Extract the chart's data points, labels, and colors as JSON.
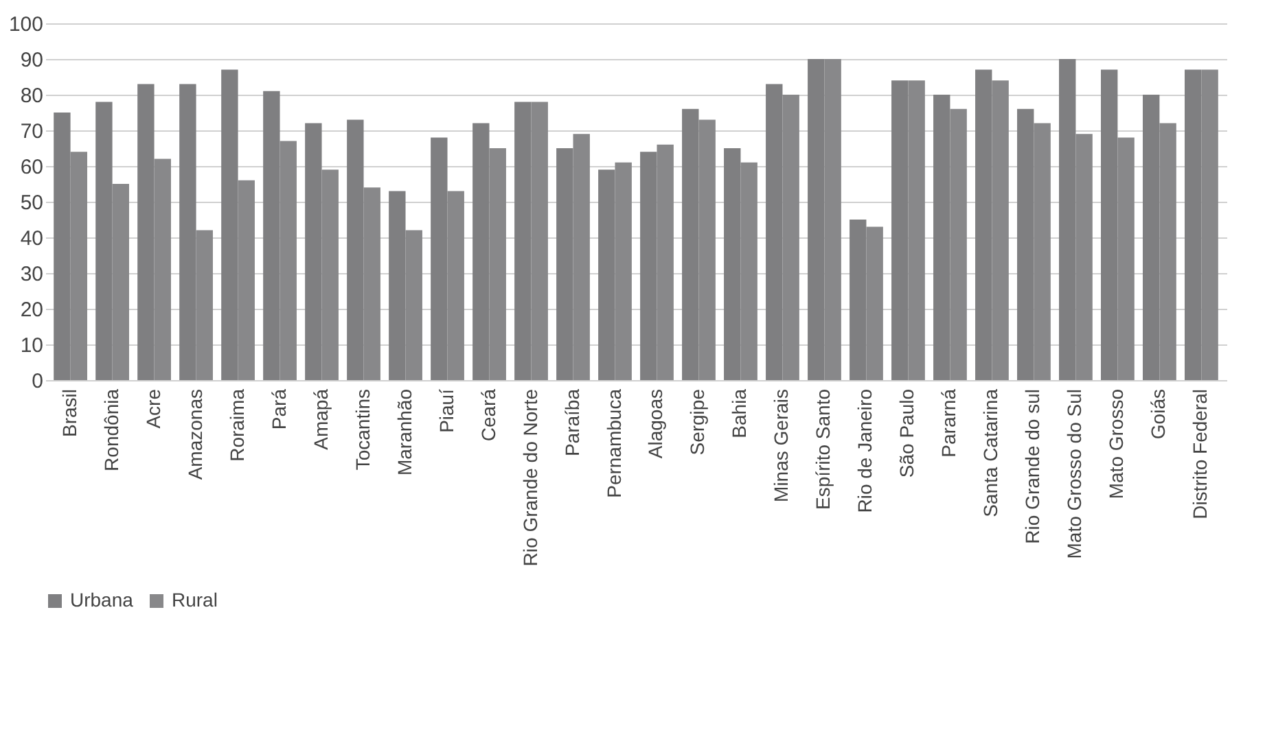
{
  "chart_data": {
    "type": "bar",
    "categories": [
      "Brasil",
      "Rondônia",
      "Acre",
      "Amazonas",
      "Roraima",
      "Pará",
      "Amapá",
      "Tocantins",
      "Maranhão",
      "Piauí",
      "Ceará",
      "Rio Grande do Norte",
      "Paraíba",
      "Pernambuca",
      "Alagoas",
      "Sergipe",
      "Bahia",
      "Minas Gerais",
      "Espírito Santo",
      "Rio de Janeiro",
      "São Paulo",
      "Pararná",
      "Santa Catarina",
      "Rio Grande do sul",
      "Mato Grosso do Sul",
      "Mato Grosso",
      "Goiás",
      "Distrito Federal"
    ],
    "series": [
      {
        "name": "Urbana",
        "color": "#7f7f81",
        "values": [
          75,
          78,
          83,
          83,
          87,
          81,
          72,
          73,
          53,
          68,
          72,
          78,
          65,
          59,
          64,
          76,
          65,
          83,
          90,
          45,
          84,
          80,
          87,
          76,
          90,
          87,
          80,
          87
        ]
      },
      {
        "name": "Rural",
        "color": "#88888a",
        "values": [
          64,
          55,
          62,
          42,
          56,
          67,
          59,
          54,
          42,
          53,
          65,
          78,
          69,
          61,
          66,
          73,
          61,
          80,
          90,
          43,
          84,
          76,
          84,
          72,
          69,
          68,
          72,
          87
        ]
      }
    ],
    "ylim": [
      0,
      100
    ],
    "yticks": [
      0,
      10,
      20,
      30,
      40,
      50,
      60,
      70,
      80,
      90,
      100
    ],
    "grid": "y",
    "legend": "bottom"
  }
}
